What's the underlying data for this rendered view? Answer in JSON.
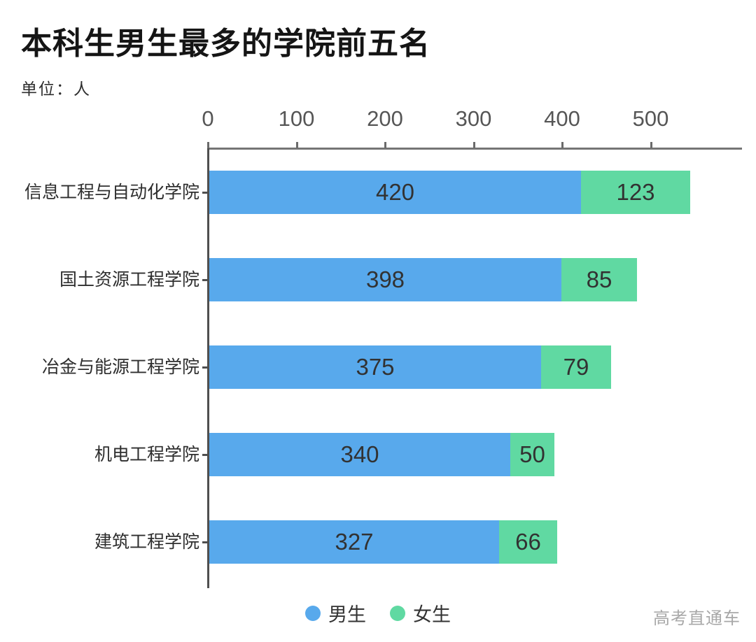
{
  "header": {
    "title": "本科生男生最多的学院前五名",
    "unit_label": "单位：人"
  },
  "watermark": "高考直通车",
  "colors": {
    "male": "#58a9ec",
    "female": "#60d9a2",
    "axis": "#6b6b6b",
    "value_text": "#323232",
    "tick_text": "#565656",
    "watermark_text": "#a8a8a8",
    "background": "#ffffff"
  },
  "chart_data": {
    "type": "bar",
    "orientation": "horizontal",
    "stacked": true,
    "title": "本科生男生最多的学院前五名",
    "unit": "人",
    "categories": [
      "信息工程与自动化学院",
      "国土资源工程学院",
      "冶金与能源工程学院",
      "机电工程学院",
      "建筑工程学院"
    ],
    "series": [
      {
        "name": "男生",
        "color": "#58a9ec",
        "values": [
          420,
          398,
          375,
          340,
          327
        ]
      },
      {
        "name": "女生",
        "color": "#60d9a2",
        "values": [
          123,
          85,
          79,
          50,
          66
        ]
      }
    ],
    "x_ticks": [
      0,
      100,
      200,
      300,
      400,
      500
    ],
    "xlim": [
      0,
      603
    ],
    "grid": false,
    "legend": [
      "男生",
      "女生"
    ],
    "legend_position": "bottom",
    "value_labels": "inside",
    "axis_position": "top"
  }
}
